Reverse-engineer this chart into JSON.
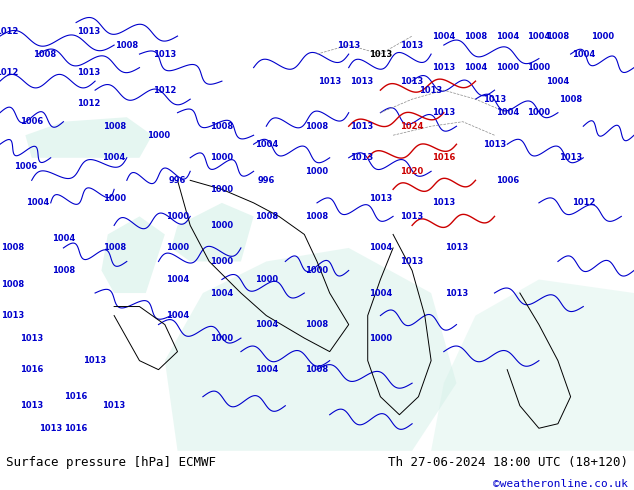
{
  "title_left": "Surface pressure [hPa] ECMWF",
  "title_right": "Th 27-06-2024 18:00 UTC (18+120)",
  "watermark": "©weatheronline.co.uk",
  "bg_color": "#b5e57a",
  "map_bg": "#b5e57a",
  "border_color": "#000000",
  "bottom_bar_color": "#ffffff",
  "bottom_bar_height": 0.08,
  "text_color_left": "#000000",
  "text_color_right": "#000000",
  "watermark_color": "#0000cc",
  "fig_width": 6.34,
  "fig_height": 4.9,
  "font_size_bottom": 9,
  "font_size_watermark": 8
}
